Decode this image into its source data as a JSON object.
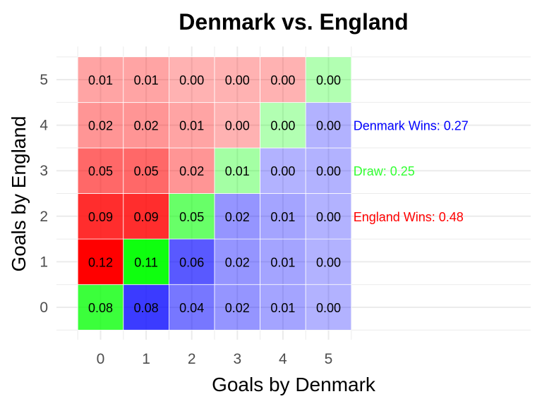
{
  "chart_data": {
    "type": "heatmap",
    "title": "Denmark vs. England",
    "xlabel": "Goals by Denmark",
    "ylabel": "Goals by England",
    "x": [
      0,
      1,
      2,
      3,
      4,
      5
    ],
    "y": [
      0,
      1,
      2,
      3,
      4,
      5
    ],
    "x_tick_labels": [
      "0",
      "1",
      "2",
      "3",
      "4",
      "5"
    ],
    "y_tick_labels": [
      "0",
      "1",
      "2",
      "3",
      "4",
      "5"
    ],
    "xlim": [
      -0.55,
      6
    ],
    "ylim": [
      -0.55,
      5.55
    ],
    "grid": true,
    "values": [
      [
        "0.08",
        "0.08",
        "0.04",
        "0.02",
        "0.01",
        "0.00"
      ],
      [
        "0.12",
        "0.11",
        "0.06",
        "0.02",
        "0.01",
        "0.00"
      ],
      [
        "0.09",
        "0.09",
        "0.05",
        "0.02",
        "0.01",
        "0.00"
      ],
      [
        "0.05",
        "0.05",
        "0.02",
        "0.01",
        "0.00",
        "0.00"
      ],
      [
        "0.02",
        "0.02",
        "0.01",
        "0.00",
        "0.00",
        "0.00"
      ],
      [
        "0.01",
        "0.01",
        "0.00",
        "0.00",
        "0.00",
        "0.00"
      ]
    ],
    "value_rows_are_england_goals_from": 0,
    "outcome_colors": {
      "denmark_win": "#0000ff",
      "draw": "#00ff00",
      "england_win": "#ff0000"
    },
    "annotations": [
      {
        "text": "Denmark Wins: 0.27",
        "color": "#0000ff",
        "x": 5.7,
        "y": 4
      },
      {
        "text": "Draw: 0.25",
        "color": "#33ff33",
        "x": 5.7,
        "y": 3
      },
      {
        "text": "England Wins: 0.48",
        "color": "#ff0000",
        "x": 5.7,
        "y": 2
      }
    ]
  }
}
